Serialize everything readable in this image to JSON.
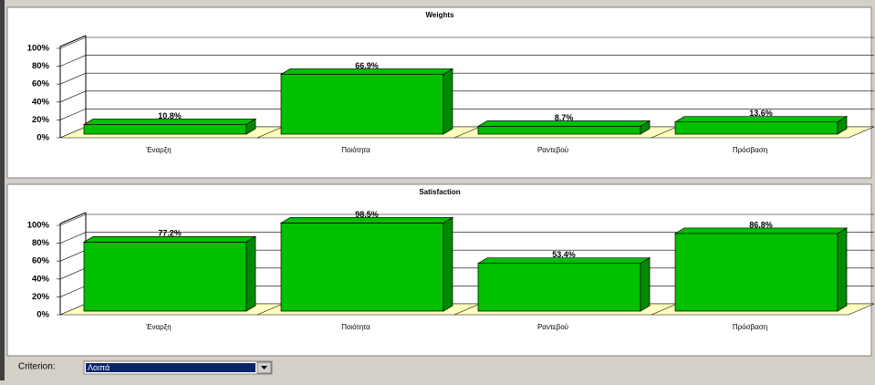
{
  "chart_data": [
    {
      "type": "bar",
      "title": "Weights",
      "categories": [
        "Έναρξη",
        "Ποιότητα",
        "Ραντεβού",
        "Πρόσβαση"
      ],
      "values": [
        10.8,
        66.9,
        8.7,
        13.6
      ],
      "value_labels": [
        "10.8%",
        "66.9%",
        "8.7%",
        "13.6%"
      ],
      "color": "#00c000",
      "ylim": [
        0,
        100
      ],
      "yticks": [
        {
          "value": 0,
          "label": "0%"
        },
        {
          "value": 20,
          "label": "20%"
        },
        {
          "value": 40,
          "label": "40%"
        },
        {
          "value": 60,
          "label": "60%"
        },
        {
          "value": 80,
          "label": "80%"
        },
        {
          "value": 100,
          "label": "100%"
        }
      ],
      "grid": true
    },
    {
      "type": "bar",
      "title": "Satisfaction",
      "categories": [
        "Έναρξη",
        "Ποιότητα",
        "Ραντεβού",
        "Πρόσβαση"
      ],
      "values": [
        77.2,
        98.5,
        53.4,
        86.8
      ],
      "value_labels": [
        "77.2%",
        "98.5%",
        "53.4%",
        "86.8%"
      ],
      "color": "#00c000",
      "ylim": [
        0,
        100
      ],
      "yticks": [
        {
          "value": 0,
          "label": "0%"
        },
        {
          "value": 20,
          "label": "20%"
        },
        {
          "value": 40,
          "label": "40%"
        },
        {
          "value": 60,
          "label": "60%"
        },
        {
          "value": 80,
          "label": "80%"
        },
        {
          "value": 100,
          "label": "100%"
        }
      ],
      "grid": true
    }
  ],
  "controls": {
    "label": "Criterion:",
    "selected": "Λοιπά"
  }
}
